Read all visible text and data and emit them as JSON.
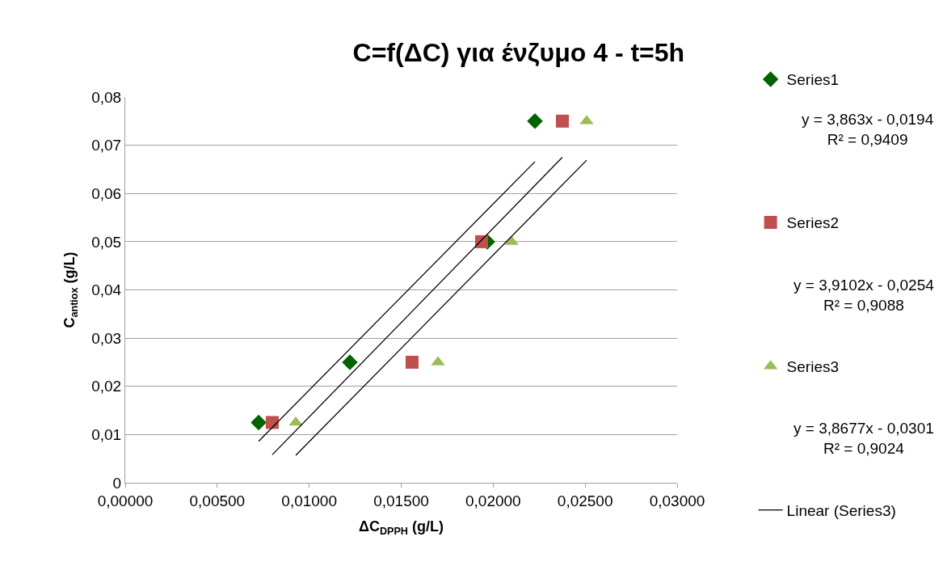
{
  "chart_data": {
    "type": "scatter",
    "title": "C=f(ΔC) για ένζυμο 4 - t=5h",
    "xlabel": "ΔC$_{DPPH}$ (g/L)",
    "ylabel": "C$_{antiox}$ (g/L)",
    "xlim": [
      0,
      0.03
    ],
    "xticks": [
      {
        "value": 0,
        "label": "0,00000"
      },
      {
        "value": 0.005,
        "label": "0,00500"
      },
      {
        "value": 0.01,
        "label": "0,01000"
      },
      {
        "value": 0.015,
        "label": "0,01500"
      },
      {
        "value": 0.02,
        "label": "0,02000"
      },
      {
        "value": 0.025,
        "label": "0,02500"
      },
      {
        "value": 0.03,
        "label": "0,03000"
      }
    ],
    "ylim": [
      0,
      0.08
    ],
    "yticks": [
      0,
      {
        "value": 0.01,
        "label": "0,01"
      },
      {
        "value": 0.02,
        "label": "0,02"
      },
      {
        "value": 0.03,
        "label": "0,03"
      },
      {
        "value": 0.04,
        "label": "0,04"
      },
      {
        "value": 0.05,
        "label": "0,05"
      },
      {
        "value": 0.06,
        "label": "0,06"
      },
      {
        "value": 0.07,
        "label": "0,07"
      },
      {
        "value": 0.08,
        "label": "0,08"
      }
    ],
    "grid": "y",
    "legend": "right",
    "series": [
      {
        "name": "Series1",
        "color": "#006400",
        "marker": "diamond",
        "x": [
          0.00725,
          0.01221,
          0.01968,
          0.02227
        ],
        "values": [
          0.0125,
          0.025,
          0.05,
          0.075
        ]
      },
      {
        "name": "Series2",
        "color": "#c0504d",
        "marker": "square",
        "x": [
          0.00799,
          0.01559,
          0.01937,
          0.02376
        ],
        "values": [
          0.0125,
          0.025,
          0.05,
          0.075
        ]
      },
      {
        "name": "Series3",
        "color": "#9bbb59",
        "marker": "triangle",
        "x": [
          0.00927,
          0.017,
          0.021,
          0.02508
        ],
        "values": [
          0.0125,
          0.025,
          0.05,
          0.075
        ]
      },
      {
        "type": "line",
        "color": "#000000",
        "marker": "none",
        "x": [
          0.00725,
          0.02227
        ],
        "values": [
          0.0086,
          0.0666
        ]
      },
      {
        "type": "line",
        "color": "#000000",
        "marker": "none",
        "x": [
          0.00799,
          0.02376
        ],
        "values": [
          0.0058,
          0.0675
        ]
      },
      {
        "type": "line",
        "name": "Linear (Series3)",
        "color": "#000000",
        "marker": "none",
        "x": [
          0.00927,
          0.02508
        ],
        "values": [
          0.0057,
          0.0669
        ]
      }
    ],
    "annotations": [
      "y = 3,863x - 0,0194\nR² = 0,9409",
      "y = 3,9102x - 0,0254\nR² = 0,9088",
      "y = 3,8677x - 0,0301\nR² = 0,9024"
    ]
  }
}
